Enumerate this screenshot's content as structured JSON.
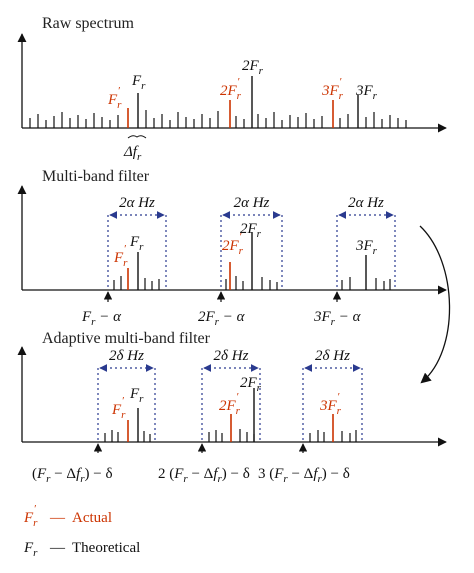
{
  "colors": {
    "actual": "#cc3300",
    "theoretical": "#111111",
    "window": "#2a3a8f",
    "axis": "#111111"
  },
  "panels": {
    "raw": {
      "title": "Raw spectrum",
      "labels": {
        "fr_prime": "F′r",
        "fr": "Fr",
        "two_fr_prime": "2F′r",
        "two_fr": "2Fr",
        "three_fr_prime": "3F′r",
        "three_fr": "3Fr"
      },
      "delta_label": "Δfr"
    },
    "multiband": {
      "title": "Multi-band filter",
      "window_width_label": "2α Hz",
      "markers": [
        "Fr − α",
        "2Fr − α",
        "3Fr − α"
      ]
    },
    "adaptive": {
      "title": "Adaptive multi-band filter",
      "window_width_label": "2δ Hz",
      "markers": [
        "(Fr − Δfr) − δ",
        "2 (Fr − Δfr) − δ",
        "3 (Fr − Δfr) − δ"
      ]
    }
  },
  "legend": {
    "actual_symbol": "F′r",
    "actual_dash": "—",
    "actual_label": "Actual",
    "theoretical_symbol": "Fr",
    "theoretical_dash": "—",
    "theoretical_label": "Theoretical"
  }
}
